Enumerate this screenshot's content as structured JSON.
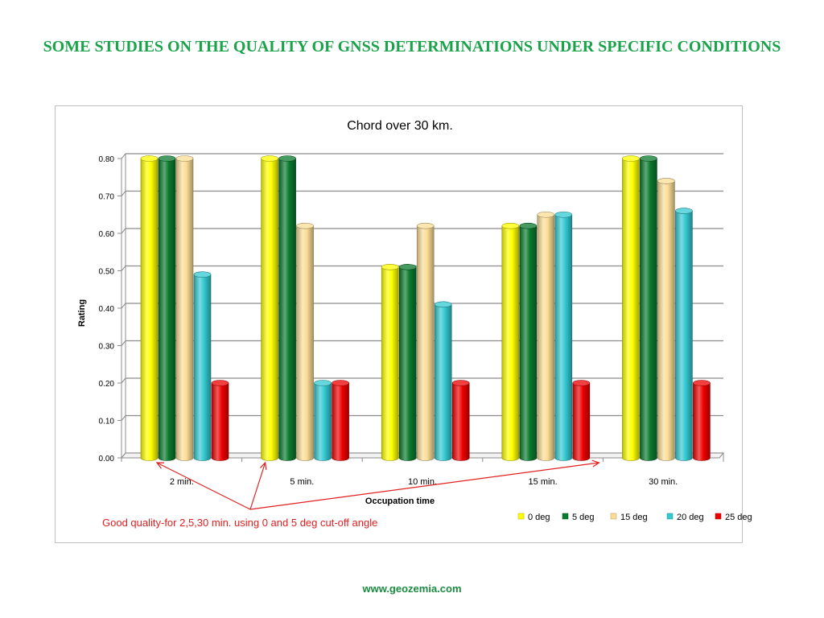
{
  "slide": {
    "title": "SOME STUDIES ON THE QUALITY OF GNSS DETERMINATIONS UNDER SPECIFIC CONDITIONS",
    "footer": "www.geozemia.com"
  },
  "chart_data": {
    "type": "bar",
    "title": "Chord over 30 km.",
    "xlabel": "Occupation time",
    "ylabel": "Rating",
    "ylim": [
      0,
      0.8
    ],
    "yticks": [
      "0.00",
      "0.10",
      "0.20",
      "0.30",
      "0.40",
      "0.50",
      "0.60",
      "0.70",
      "0.80"
    ],
    "categories": [
      "2 min.",
      "5 min.",
      "10 min.",
      "15 min.",
      "30 min."
    ],
    "series": [
      {
        "name": "0 deg",
        "color": "#ffff00",
        "values": [
          0.8,
          0.8,
          0.51,
          0.62,
          0.8
        ]
      },
      {
        "name": "5 deg",
        "color": "#0a7a2e",
        "values": [
          0.8,
          0.8,
          0.51,
          0.62,
          0.8
        ]
      },
      {
        "name": "15 deg",
        "color": "#fbdd96",
        "values": [
          0.8,
          0.62,
          0.62,
          0.65,
          0.74
        ]
      },
      {
        "name": "20 deg",
        "color": "#33c9d1",
        "values": [
          0.49,
          0.2,
          0.41,
          0.65,
          0.66
        ]
      },
      {
        "name": "25 deg",
        "color": "#ee0000",
        "values": [
          0.2,
          0.2,
          0.2,
          0.2,
          0.2
        ]
      }
    ],
    "grid": true,
    "legend_position": "bottom-right",
    "annotation": {
      "text": "Good quality-for 2,5,30 min. using 0 and 5 deg cut-off angle",
      "color": "#e02020",
      "points_to": [
        "2 min.",
        "5 min.",
        "30 min."
      ]
    }
  }
}
